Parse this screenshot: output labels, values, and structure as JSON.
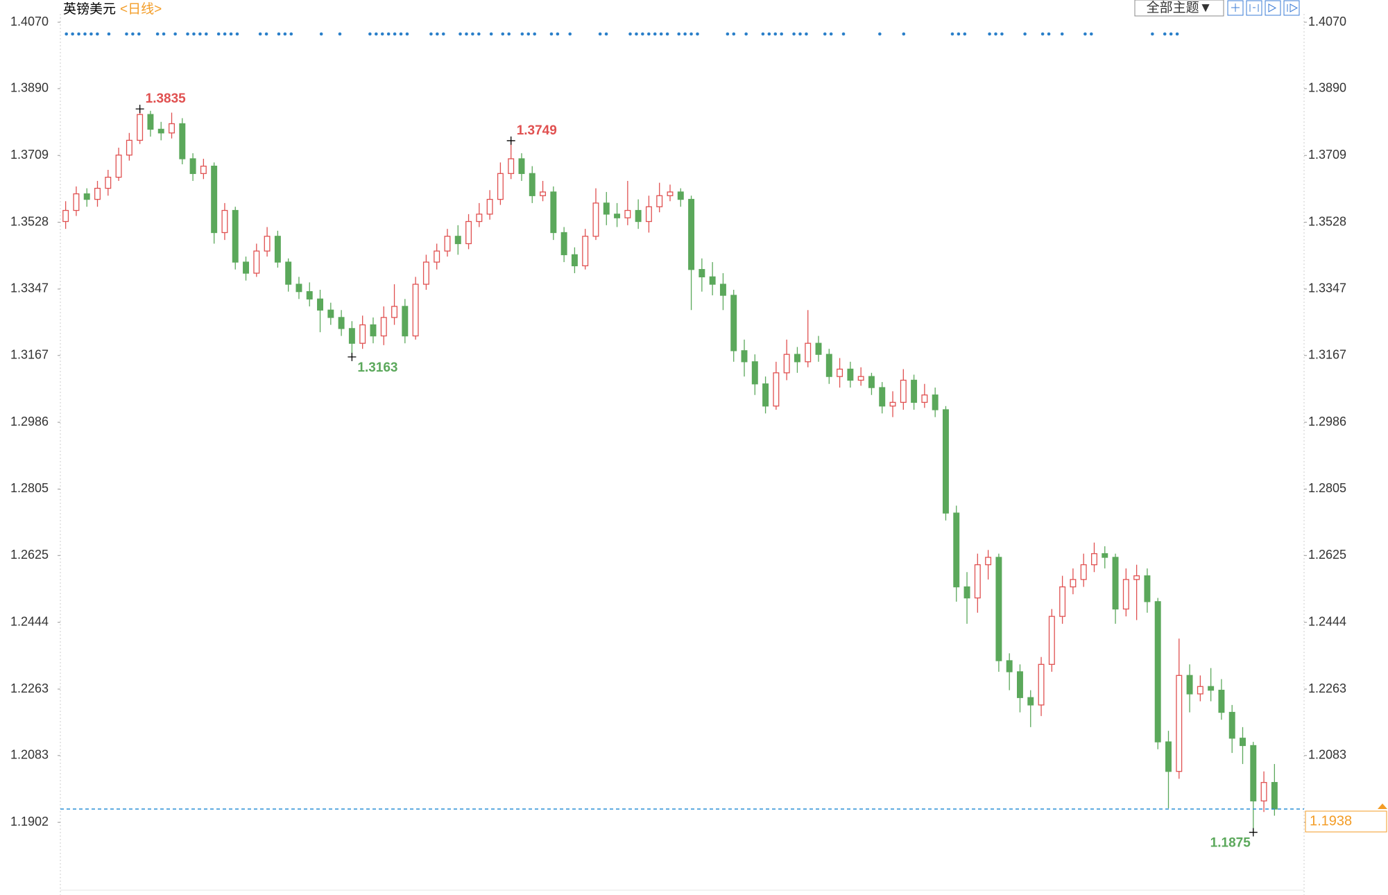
{
  "toolbar": {
    "theme_button": "全部主题▼"
  },
  "chart_data": {
    "type": "candlestick",
    "title": "英镑美元",
    "subtitle": "<日线>",
    "open": [
      1.353,
      1.356,
      1.3605,
      1.359,
      1.362,
      1.365,
      1.371,
      1.375,
      1.382,
      1.378,
      1.377,
      1.3795,
      1.37,
      1.366,
      1.368,
      1.35,
      1.356,
      1.342,
      1.339,
      1.345,
      1.349,
      1.342,
      1.336,
      1.334,
      1.332,
      1.329,
      1.327,
      1.324,
      1.32,
      1.325,
      1.322,
      1.327,
      1.33,
      1.322,
      1.336,
      1.342,
      1.345,
      1.349,
      1.347,
      1.353,
      1.355,
      1.359,
      1.366,
      1.37,
      1.366,
      1.36,
      1.361,
      1.35,
      1.344,
      1.341,
      1.349,
      1.358,
      1.355,
      1.354,
      1.356,
      1.353,
      1.357,
      1.36,
      1.361,
      1.359,
      1.34,
      1.338,
      1.336,
      1.333,
      1.318,
      1.315,
      1.309,
      1.303,
      1.312,
      1.317,
      1.315,
      1.32,
      1.317,
      1.311,
      1.313,
      1.31,
      1.311,
      1.308,
      1.303,
      1.304,
      1.31,
      1.304,
      1.306,
      1.302,
      1.274,
      1.254,
      1.251,
      1.26,
      1.262,
      1.234,
      1.231,
      1.224,
      1.222,
      1.233,
      1.246,
      1.254,
      1.256,
      1.26,
      1.263,
      1.262,
      1.248,
      1.256,
      1.257,
      1.25,
      1.212,
      1.204,
      1.23,
      1.225,
      1.227,
      1.226,
      1.22,
      1.213,
      1.211,
      1.196,
      1.201
    ],
    "high": [
      1.3585,
      1.3625,
      1.362,
      1.364,
      1.367,
      1.373,
      1.377,
      1.3835,
      1.383,
      1.38,
      1.3825,
      1.381,
      1.3715,
      1.37,
      1.369,
      1.358,
      1.357,
      1.3435,
      1.347,
      1.3515,
      1.3505,
      1.343,
      1.338,
      1.3365,
      1.3345,
      1.331,
      1.329,
      1.326,
      1.3275,
      1.327,
      1.33,
      1.336,
      1.332,
      1.338,
      1.344,
      1.347,
      1.351,
      1.352,
      1.355,
      1.358,
      1.3615,
      1.369,
      1.3749,
      1.3715,
      1.368,
      1.364,
      1.3625,
      1.3515,
      1.346,
      1.351,
      1.362,
      1.361,
      1.358,
      1.364,
      1.359,
      1.36,
      1.3635,
      1.363,
      1.362,
      1.36,
      1.343,
      1.342,
      1.339,
      1.3345,
      1.321,
      1.317,
      1.311,
      1.315,
      1.321,
      1.319,
      1.329,
      1.322,
      1.3185,
      1.316,
      1.315,
      1.3135,
      1.312,
      1.3095,
      1.307,
      1.313,
      1.3115,
      1.309,
      1.308,
      1.303,
      1.276,
      1.258,
      1.263,
      1.264,
      1.263,
      1.236,
      1.233,
      1.226,
      1.235,
      1.248,
      1.257,
      1.259,
      1.263,
      1.266,
      1.265,
      1.263,
      1.259,
      1.26,
      1.259,
      1.251,
      1.215,
      1.24,
      1.233,
      1.23,
      1.232,
      1.229,
      1.222,
      1.216,
      1.212,
      1.204,
      1.206
    ],
    "low": [
      1.351,
      1.3545,
      1.357,
      1.357,
      1.36,
      1.364,
      1.3695,
      1.374,
      1.376,
      1.375,
      1.3755,
      1.3685,
      1.364,
      1.3645,
      1.347,
      1.348,
      1.34,
      1.337,
      1.338,
      1.3435,
      1.3405,
      1.334,
      1.332,
      1.33,
      1.323,
      1.325,
      1.322,
      1.3163,
      1.3185,
      1.32,
      1.3195,
      1.325,
      1.32,
      1.321,
      1.3345,
      1.34,
      1.3435,
      1.344,
      1.3455,
      1.3515,
      1.3535,
      1.3575,
      1.3645,
      1.364,
      1.358,
      1.3585,
      1.348,
      1.342,
      1.339,
      1.34,
      1.348,
      1.352,
      1.3515,
      1.352,
      1.351,
      1.35,
      1.3555,
      1.3585,
      1.357,
      1.329,
      1.334,
      1.333,
      1.329,
      1.315,
      1.311,
      1.306,
      1.301,
      1.302,
      1.31,
      1.312,
      1.3135,
      1.315,
      1.309,
      1.308,
      1.308,
      1.3085,
      1.306,
      1.301,
      1.3,
      1.302,
      1.302,
      1.3025,
      1.3,
      1.272,
      1.25,
      1.244,
      1.247,
      1.256,
      1.231,
      1.226,
      1.22,
      1.216,
      1.219,
      1.231,
      1.244,
      1.252,
      1.254,
      1.258,
      1.259,
      1.244,
      1.246,
      1.245,
      1.247,
      1.21,
      1.194,
      1.202,
      1.22,
      1.223,
      1.223,
      1.218,
      1.209,
      1.206,
      1.1875,
      1.193,
      1.192
    ],
    "close": [
      1.356,
      1.3605,
      1.359,
      1.362,
      1.365,
      1.371,
      1.375,
      1.382,
      1.378,
      1.377,
      1.3795,
      1.37,
      1.366,
      1.368,
      1.35,
      1.356,
      1.342,
      1.339,
      1.345,
      1.349,
      1.342,
      1.336,
      1.334,
      1.332,
      1.329,
      1.327,
      1.324,
      1.32,
      1.325,
      1.322,
      1.327,
      1.33,
      1.322,
      1.336,
      1.342,
      1.345,
      1.349,
      1.347,
      1.353,
      1.355,
      1.359,
      1.366,
      1.37,
      1.366,
      1.36,
      1.361,
      1.35,
      1.344,
      1.341,
      1.349,
      1.358,
      1.355,
      1.354,
      1.356,
      1.353,
      1.357,
      1.36,
      1.361,
      1.359,
      1.34,
      1.338,
      1.336,
      1.333,
      1.318,
      1.315,
      1.309,
      1.303,
      1.312,
      1.317,
      1.315,
      1.32,
      1.317,
      1.311,
      1.313,
      1.31,
      1.311,
      1.308,
      1.303,
      1.304,
      1.31,
      1.304,
      1.306,
      1.302,
      1.274,
      1.254,
      1.251,
      1.26,
      1.262,
      1.234,
      1.231,
      1.224,
      1.222,
      1.233,
      1.246,
      1.254,
      1.256,
      1.26,
      1.263,
      1.262,
      1.248,
      1.256,
      1.257,
      1.25,
      1.212,
      1.204,
      1.23,
      1.225,
      1.227,
      1.226,
      1.22,
      1.213,
      1.211,
      1.196,
      1.201,
      1.1938
    ],
    "up_color": "#e05050",
    "down_color": "#5ba85b",
    "ylim": [
      1.1722,
      1.4087
    ],
    "yticks": [
      {
        "value": 1.407,
        "label": "1.4070"
      },
      {
        "value": 1.389,
        "label": "1.3890"
      },
      1.3709,
      1.3528,
      1.3347,
      1.3167,
      1.2986,
      1.2805,
      1.2625,
      1.2444,
      1.2263,
      1.2083,
      1.1902
    ],
    "grid": false,
    "annotations": [
      1.3835,
      1.3749,
      1.3163,
      1.1875
    ],
    "last_price": 1.1938,
    "last_price_color": "#f39c26"
  }
}
